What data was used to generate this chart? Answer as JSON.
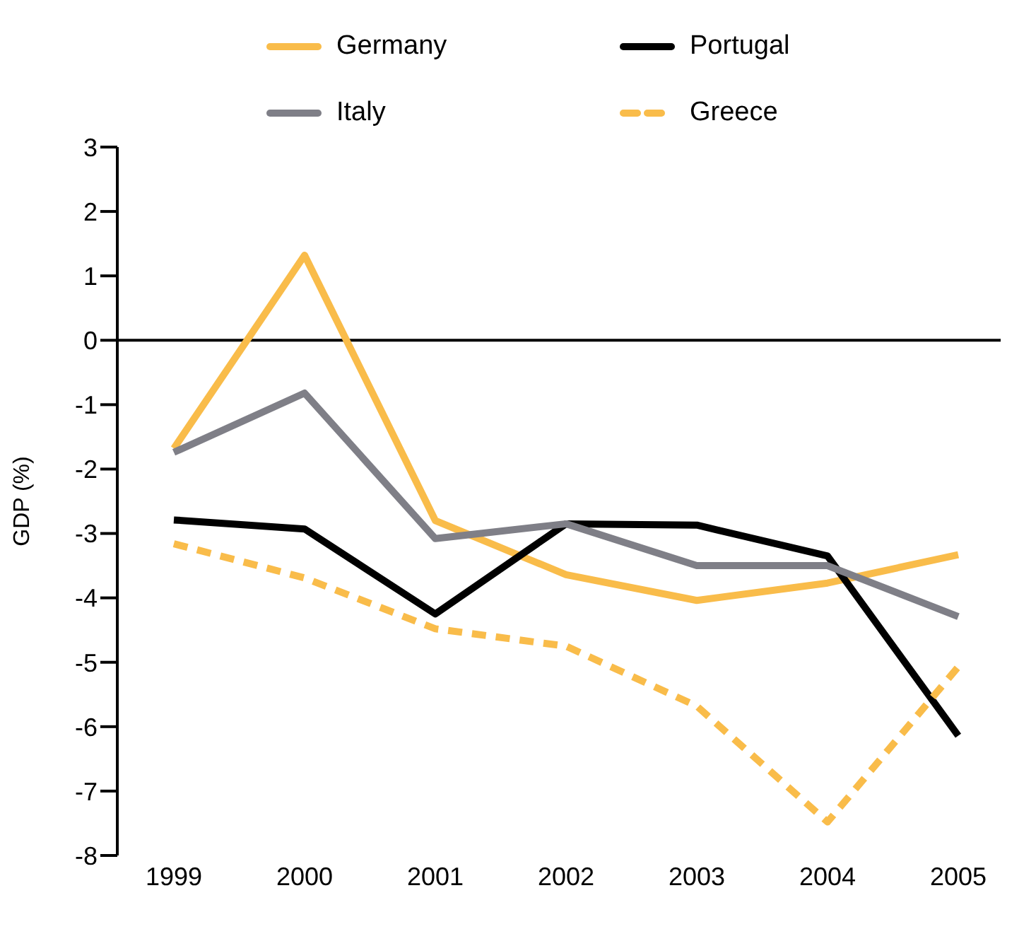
{
  "chart_data": {
    "type": "line",
    "ylabel": "GDP (%)",
    "categories": [
      "1999",
      "2000",
      "2001",
      "2002",
      "2003",
      "2004",
      "2005"
    ],
    "series": [
      {
        "name": "Germany",
        "color": "#f9bc4a",
        "values": [
          -1.68,
          1.32,
          -2.8,
          -3.64,
          -4.04,
          -3.77,
          -3.33
        ]
      },
      {
        "name": "Portugal",
        "color": "#000000",
        "values": [
          -2.79,
          -2.93,
          -4.25,
          -2.85,
          -2.87,
          -3.35,
          -6.14
        ]
      },
      {
        "name": "Italy",
        "color": "#7f7f87",
        "values": [
          -1.74,
          -0.82,
          -3.08,
          -2.85,
          -3.5,
          -3.5,
          -4.29
        ]
      },
      {
        "name": "Greece",
        "color": "#f9bc4a",
        "line_style": "dashed",
        "values": [
          -3.16,
          -3.69,
          -4.48,
          -4.75,
          -5.68,
          -7.48,
          -5.07
        ]
      }
    ],
    "ylim": [
      -8,
      3
    ],
    "yticks": [
      -8,
      -7,
      -6,
      -5,
      -4,
      -3,
      -2,
      -1,
      0,
      1,
      2,
      3
    ],
    "legend": "top",
    "marker": "none"
  }
}
